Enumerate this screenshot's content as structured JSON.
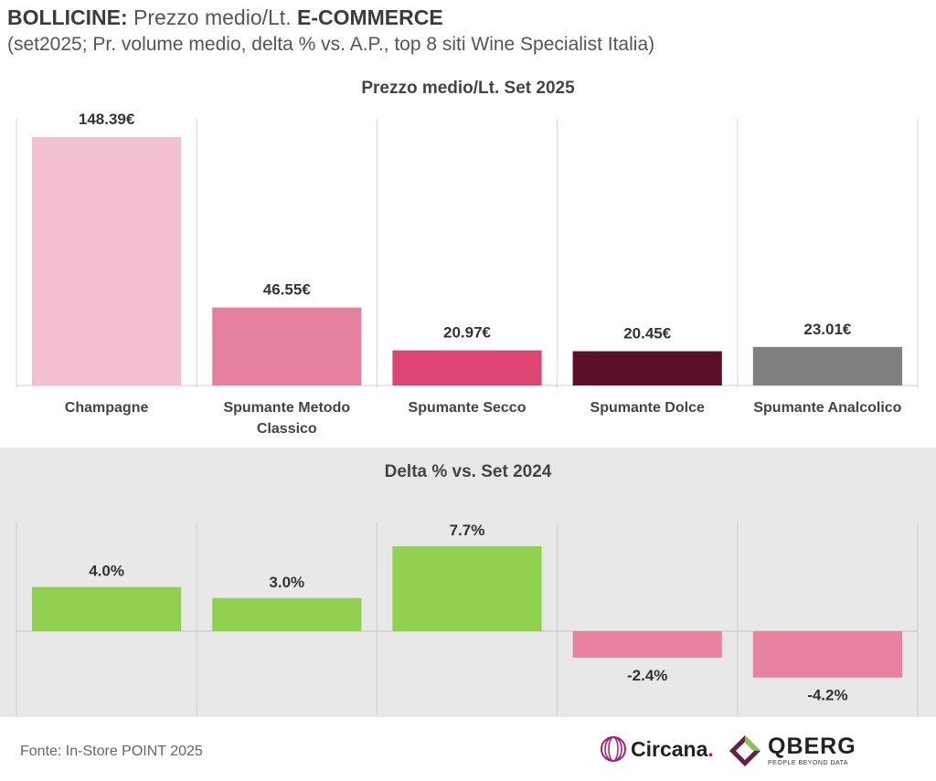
{
  "header": {
    "title_bold": "BOLLICINE:",
    "title_regular": "Prezzo medio/Lt.",
    "title_bold2": "E-COMMERCE",
    "subtitle": "(set2025; Pr. volume medio, delta % vs. A.P., top 8 siti Wine Specialist Italia)"
  },
  "chart_data": [
    {
      "type": "bar",
      "title": "Prezzo medio/Lt. Set 2025",
      "categories": [
        "Champagne",
        "Spumante Metodo Classico",
        "Spumante Secco",
        "Spumante Dolce",
        "Spumante Analcolico"
      ],
      "category_lines": [
        [
          "Champagne"
        ],
        [
          "Spumante Metodo",
          "Classico"
        ],
        [
          "Spumante Secco"
        ],
        [
          "Spumante Dolce"
        ],
        [
          "Spumante Analcolico"
        ]
      ],
      "values": [
        148.39,
        46.55,
        20.97,
        20.45,
        23.01
      ],
      "labels": [
        "148.39€",
        "46.55€",
        "20.97€",
        "20.45€",
        "23.01€"
      ],
      "colors": [
        "#f2c0cf",
        "#e5809e",
        "#dc4472",
        "#5a1028",
        "#808080"
      ],
      "ylim": [
        0,
        148.39
      ],
      "grid": "vertical separators"
    },
    {
      "type": "bar",
      "title": "Delta % vs. Set 2024",
      "categories": [
        "Champagne",
        "Spumante Metodo Classico",
        "Spumante Secco",
        "Spumante Dolce",
        "Spumante Analcolico"
      ],
      "values": [
        4.0,
        3.0,
        7.7,
        -2.4,
        -4.2
      ],
      "labels": [
        "4.0%",
        "3.0%",
        "7.7%",
        "-2.4%",
        "-4.2%"
      ],
      "positive_color": "#92d050",
      "negative_color": "#e8829f",
      "ylim": [
        -4.2,
        7.7
      ],
      "grid": "vertical separators"
    }
  ],
  "footer": {
    "source": "Fonte: In-Store POINT 2025",
    "logo_circana": "Circana",
    "logo_circana_dot": ".",
    "logo_qberg": "QBERG",
    "logo_qberg_tagline": "PEOPLE BEYOND DATA"
  }
}
